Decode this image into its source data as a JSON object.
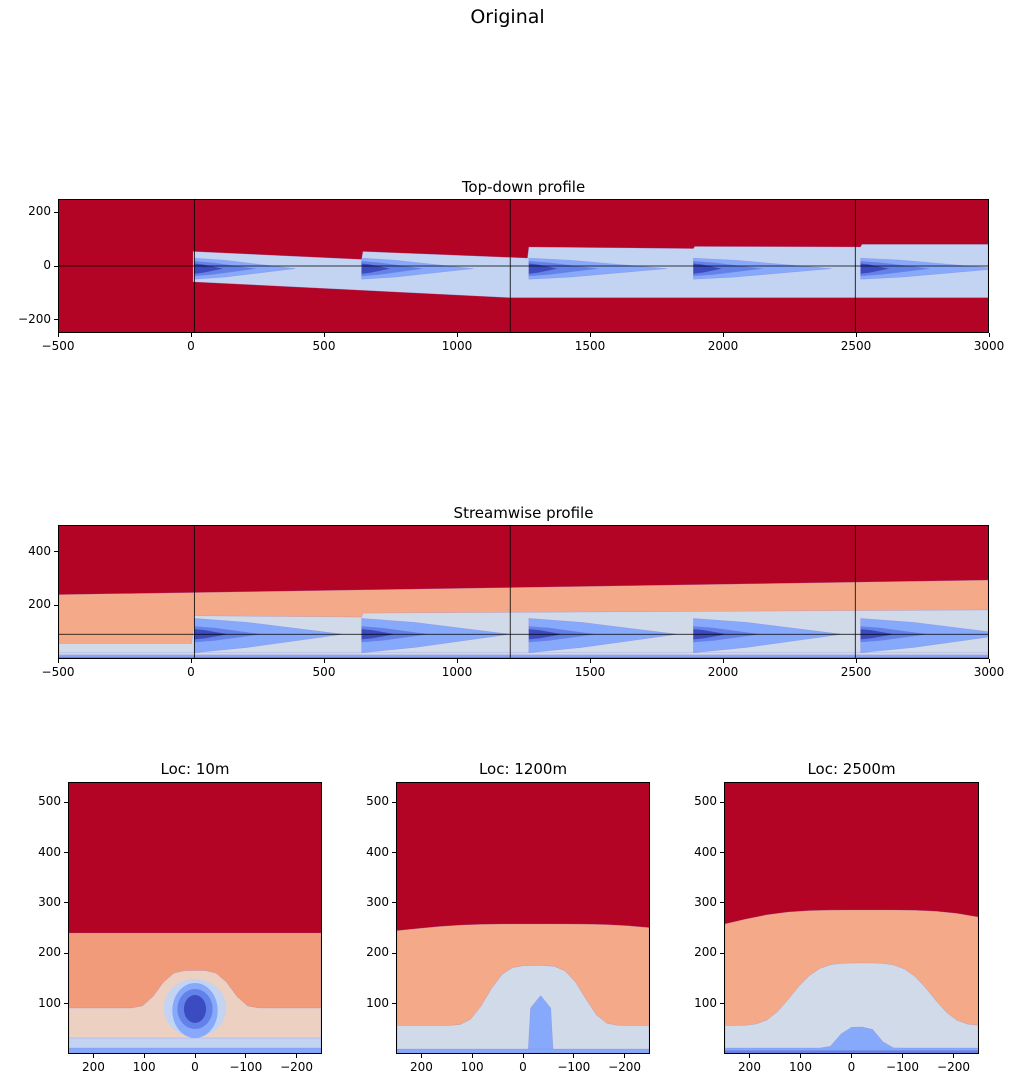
{
  "suptitle": "Original",
  "colors": {
    "dark_red": "#b40426",
    "salmon": "#f4aa88",
    "salmon_deep": "#f29b7b",
    "pink": "#ecd0c2",
    "grayblue": "#d1dae9",
    "lightblue": "#c3d3f2",
    "blue": "#86a9fc",
    "midblue": "#6282ea",
    "darkblue": "#3b4cc0"
  },
  "chart_data": [
    {
      "type": "heatmap",
      "style": "filled contour",
      "colormap": "coolwarm",
      "title": "Top-down profile",
      "xlim": [
        -500,
        3000
      ],
      "ylim": [
        -250,
        250
      ],
      "xticks": [
        -500,
        0,
        500,
        1000,
        1500,
        2000,
        2500,
        3000
      ],
      "yticks": [
        -200,
        0,
        200
      ],
      "reference_lines": {
        "x": [
          10,
          1200,
          2500
        ],
        "y": [
          0
        ]
      },
      "turbine_x": [
        10,
        640,
        1270,
        1890,
        2520
      ]
    },
    {
      "type": "heatmap",
      "style": "filled contour",
      "colormap": "coolwarm",
      "title": "Streamwise profile",
      "xlim": [
        -500,
        3000
      ],
      "ylim": [
        0,
        500
      ],
      "xticks": [
        -500,
        0,
        500,
        1000,
        1500,
        2000,
        2500,
        3000
      ],
      "yticks": [
        200,
        400
      ],
      "reference_lines": {
        "x": [
          10,
          1200,
          2500
        ],
        "y": [
          90
        ]
      },
      "turbine_x": [
        10,
        640,
        1270,
        1890,
        2520
      ]
    },
    {
      "type": "heatmap",
      "style": "filled contour",
      "colormap": "coolwarm",
      "title": "Loc: 10m",
      "xlim": [
        250,
        -250
      ],
      "ylim": [
        0,
        540
      ],
      "xticks": [
        200,
        100,
        0,
        -100,
        -200
      ],
      "yticks": [
        100,
        200,
        300,
        400,
        500
      ]
    },
    {
      "type": "heatmap",
      "style": "filled contour",
      "colormap": "coolwarm",
      "title": "Loc: 1200m",
      "xlim": [
        250,
        -250
      ],
      "ylim": [
        0,
        540
      ],
      "xticks": [
        200,
        100,
        0,
        -100,
        -200
      ],
      "yticks": [
        100,
        200,
        300,
        400,
        500
      ]
    },
    {
      "type": "heatmap",
      "style": "filled contour",
      "colormap": "coolwarm",
      "title": "Loc: 2500m",
      "xlim": [
        250,
        -250
      ],
      "ylim": [
        0,
        540
      ],
      "xticks": [
        200,
        100,
        0,
        -100,
        -200
      ],
      "yticks": [
        100,
        200,
        300,
        400,
        500
      ]
    }
  ]
}
